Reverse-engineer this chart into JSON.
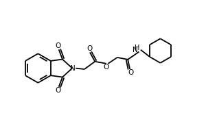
{
  "bg_color": "#ffffff",
  "line_color": "#000000",
  "line_width": 1.3,
  "figsize": [
    3.0,
    2.0
  ],
  "dpi": 100,
  "xlim": [
    0,
    10
  ],
  "ylim": [
    0,
    6.67
  ]
}
